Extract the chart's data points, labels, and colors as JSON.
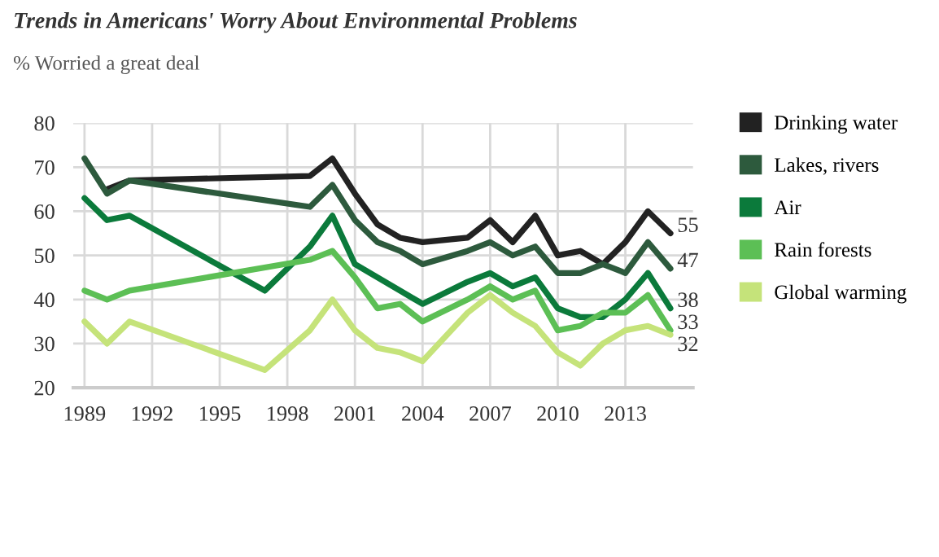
{
  "chart_data": {
    "type": "line",
    "title": "Trends in Americans' Worry About Environmental Problems",
    "subtitle": "% Worried a great deal",
    "x": [
      1989,
      1990,
      1991,
      1997,
      1999,
      2000,
      2001,
      2002,
      2003,
      2004,
      2006,
      2007,
      2008,
      2009,
      2010,
      2011,
      2012,
      2013,
      2014,
      2015
    ],
    "series": [
      {
        "name": "Drinking water",
        "color": "#222222",
        "values": [
          null,
          65,
          67,
          null,
          68,
          72,
          64,
          57,
          54,
          53,
          54,
          58,
          53,
          59,
          50,
          51,
          48,
          53,
          60,
          55
        ],
        "value_labels": [
          null,
          null,
          null,
          null,
          null,
          null,
          null,
          null,
          null,
          null,
          null,
          null,
          null,
          null,
          null,
          null,
          null,
          null,
          null,
          "55"
        ]
      },
      {
        "name": "Lakes, rivers",
        "color": "#2d5a3d",
        "values": [
          72,
          64,
          67,
          null,
          61,
          66,
          58,
          53,
          51,
          48,
          51,
          53,
          50,
          52,
          46,
          46,
          48,
          46,
          53,
          47
        ],
        "value_labels": [
          null,
          null,
          null,
          null,
          null,
          null,
          null,
          null,
          null,
          null,
          null,
          null,
          null,
          null,
          null,
          null,
          null,
          null,
          null,
          "47"
        ]
      },
      {
        "name": "Air",
        "color": "#0b7a3b",
        "values": [
          63,
          58,
          59,
          42,
          52,
          59,
          48,
          45,
          42,
          39,
          44,
          46,
          43,
          45,
          38,
          36,
          36,
          40,
          46,
          38
        ],
        "value_labels": [
          null,
          null,
          null,
          null,
          null,
          null,
          null,
          null,
          null,
          null,
          null,
          null,
          null,
          null,
          null,
          null,
          null,
          null,
          null,
          "38"
        ]
      },
      {
        "name": "Rain forests",
        "color": "#5cbf55",
        "values": [
          42,
          40,
          42,
          null,
          49,
          51,
          45,
          38,
          39,
          35,
          40,
          43,
          40,
          42,
          33,
          34,
          37,
          37,
          41,
          33
        ],
        "value_labels": [
          null,
          null,
          null,
          null,
          null,
          null,
          null,
          null,
          null,
          null,
          null,
          null,
          null,
          null,
          null,
          null,
          null,
          null,
          null,
          "33"
        ]
      },
      {
        "name": "Global warming",
        "color": "#c5e37a",
        "values": [
          35,
          30,
          35,
          24,
          33,
          40,
          33,
          29,
          28,
          26,
          37,
          41,
          37,
          34,
          28,
          25,
          30,
          33,
          34,
          32
        ],
        "value_labels": [
          null,
          null,
          null,
          null,
          null,
          null,
          null,
          null,
          null,
          null,
          null,
          null,
          null,
          null,
          null,
          null,
          null,
          null,
          null,
          "32"
        ]
      }
    ],
    "xlim": [
      1988.5,
      2016
    ],
    "xticks": [
      1989,
      1992,
      1995,
      1998,
      2001,
      2004,
      2007,
      2010,
      2013
    ],
    "ylim": [
      20,
      80
    ],
    "yticks": [
      20,
      30,
      40,
      50,
      60,
      70,
      80
    ],
    "grid": true,
    "legend": "top right",
    "marker": "none",
    "line_style": "solid"
  }
}
